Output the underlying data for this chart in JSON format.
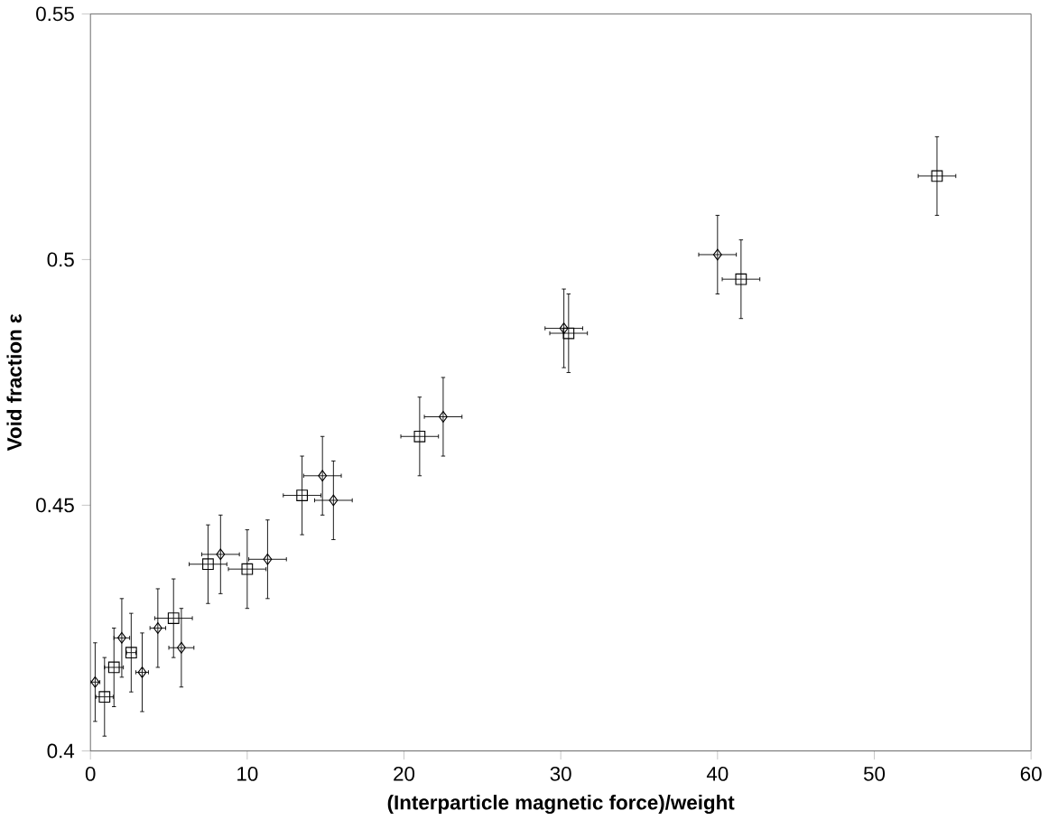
{
  "chart_data": {
    "type": "scatter",
    "xlabel": "(Interparticle magnetic force)/weight",
    "ylabel": "Void fraction  ε",
    "xlim": [
      0,
      60
    ],
    "ylim": [
      0.4,
      0.55
    ],
    "xticks": [
      0,
      10,
      20,
      30,
      40,
      50,
      60
    ],
    "yticks": [
      0.4,
      0.45,
      0.5,
      0.55
    ],
    "series": [
      {
        "color": "#000000",
        "marker": "square",
        "x": [
          0.9,
          1.5,
          2.6,
          5.3,
          7.5,
          10,
          13.5,
          21,
          30.5,
          41.5,
          54
        ],
        "values": [
          0.411,
          0.417,
          0.42,
          0.427,
          0.438,
          0.437,
          0.452,
          0.464,
          0.485,
          0.496,
          0.517
        ],
        "errors": [
          0.008,
          0.008,
          0.008,
          0.008,
          0.008,
          0.008,
          0.008,
          0.008,
          0.008,
          0.008,
          0.008
        ],
        "xerrors": [
          0.55,
          0.6,
          0.3,
          1.2,
          1.2,
          1.2,
          1.2,
          1.2,
          1.2,
          1.2,
          1.2
        ]
      },
      {
        "color": "#000000",
        "marker": "diamond",
        "x": [
          0.3,
          2,
          3.3,
          4.3,
          5.8,
          8.3,
          11.3,
          14.8,
          15.5,
          22.5,
          30.2,
          40
        ],
        "values": [
          0.414,
          0.423,
          0.416,
          0.425,
          0.421,
          0.44,
          0.439,
          0.456,
          0.451,
          0.468,
          0.486,
          0.501
        ],
        "errors": [
          0.008,
          0.008,
          0.008,
          0.008,
          0.008,
          0.008,
          0.008,
          0.008,
          0.008,
          0.008,
          0.008,
          0.008
        ],
        "xerrors": [
          0.3,
          0.5,
          0.4,
          0.5,
          0.8,
          1.2,
          1.2,
          1.2,
          1.2,
          1.2,
          1.2,
          1.2
        ]
      }
    ]
  }
}
